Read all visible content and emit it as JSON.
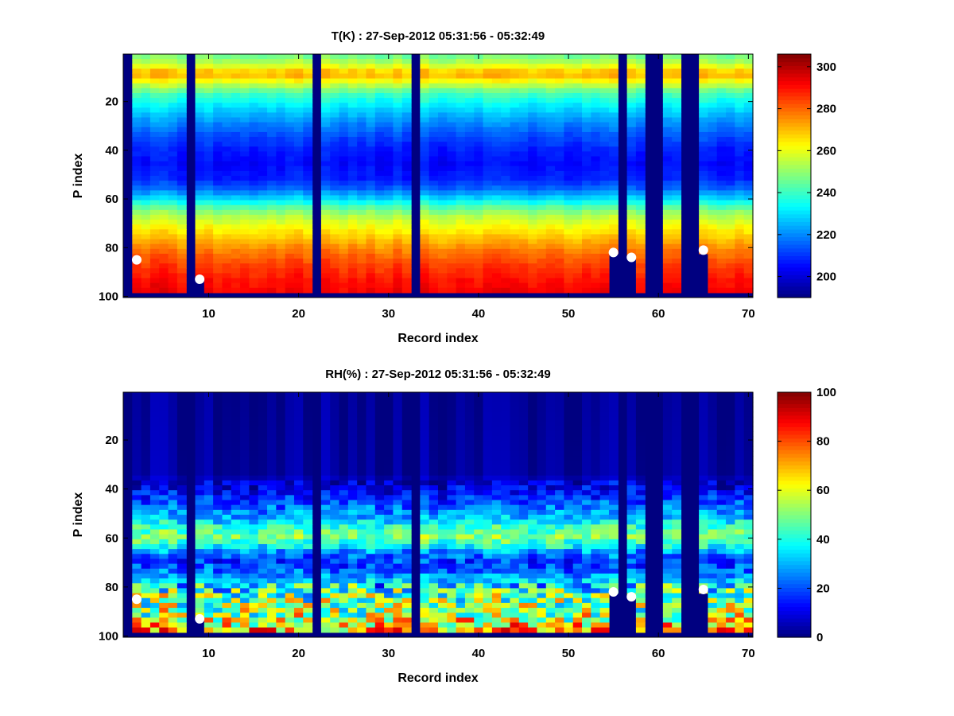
{
  "chart_data": [
    {
      "type": "heatmap",
      "title": "T(K) : 27-Sep-2012 05:31:56 - 05:32:49",
      "xlabel": "Record index",
      "ylabel": "P index",
      "xlim": [
        0.5,
        70.5
      ],
      "ylim": [
        0.5,
        100.5
      ],
      "y_reversed": true,
      "x_ticks": [
        10,
        20,
        30,
        40,
        50,
        60,
        70
      ],
      "y_ticks": [
        20,
        40,
        60,
        80,
        100
      ],
      "colormap": "jet",
      "colorbar": {
        "range": [
          190,
          306
        ],
        "ticks": [
          200,
          220,
          240,
          260,
          280,
          300
        ]
      },
      "missing_columns": [
        1,
        8,
        22,
        33,
        56,
        59,
        60,
        63,
        64
      ],
      "bottom_cut_columns": [
        {
          "x": 9,
          "p": 93
        },
        {
          "x": 55,
          "p": 83
        },
        {
          "x": 57,
          "p": 85
        },
        {
          "x": 65,
          "p": 82
        }
      ],
      "markers": [
        {
          "x": 2,
          "y": 85
        },
        {
          "x": 9,
          "y": 93
        },
        {
          "x": 55,
          "y": 82
        },
        {
          "x": 57,
          "y": 84
        },
        {
          "x": 65,
          "y": 81
        }
      ],
      "profile": [
        {
          "p": 1,
          "v": 245
        },
        {
          "p": 5,
          "v": 255
        },
        {
          "p": 8,
          "v": 268
        },
        {
          "p": 10,
          "v": 270
        },
        {
          "p": 13,
          "v": 258
        },
        {
          "p": 17,
          "v": 242
        },
        {
          "p": 22,
          "v": 232
        },
        {
          "p": 28,
          "v": 222
        },
        {
          "p": 34,
          "v": 214
        },
        {
          "p": 40,
          "v": 208
        },
        {
          "p": 46,
          "v": 205
        },
        {
          "p": 52,
          "v": 208
        },
        {
          "p": 56,
          "v": 215
        },
        {
          "p": 60,
          "v": 228
        },
        {
          "p": 63,
          "v": 240
        },
        {
          "p": 67,
          "v": 253
        },
        {
          "p": 72,
          "v": 262
        },
        {
          "p": 77,
          "v": 270
        },
        {
          "p": 82,
          "v": 278
        },
        {
          "p": 88,
          "v": 285
        },
        {
          "p": 94,
          "v": 290
        },
        {
          "p": 98,
          "v": 292
        },
        {
          "p": 100,
          "v": 292
        }
      ]
    },
    {
      "type": "heatmap",
      "title": "RH(%) : 27-Sep-2012 05:31:56 - 05:32:49",
      "xlabel": "Record index",
      "ylabel": "P index",
      "xlim": [
        0.5,
        70.5
      ],
      "ylim": [
        0.5,
        100.5
      ],
      "y_reversed": true,
      "x_ticks": [
        10,
        20,
        30,
        40,
        50,
        60,
        70
      ],
      "y_ticks": [
        20,
        40,
        60,
        80,
        100
      ],
      "colormap": "jet",
      "colorbar": {
        "range": [
          0,
          100
        ],
        "ticks": [
          0,
          20,
          40,
          60,
          80,
          100
        ]
      },
      "missing_columns": [
        1,
        8,
        22,
        33,
        56,
        59,
        60,
        63,
        64
      ],
      "bottom_cut_columns": [
        {
          "x": 9,
          "p": 93
        },
        {
          "x": 55,
          "p": 83
        },
        {
          "x": 57,
          "p": 85
        },
        {
          "x": 65,
          "p": 82
        }
      ],
      "markers": [
        {
          "x": 2,
          "y": 85
        },
        {
          "x": 9,
          "y": 93
        },
        {
          "x": 55,
          "y": 82
        },
        {
          "x": 57,
          "y": 84
        },
        {
          "x": 65,
          "y": 81
        }
      ],
      "profile": [
        {
          "p": 1,
          "v": 2
        },
        {
          "p": 34,
          "v": 3
        },
        {
          "p": 40,
          "v": 10
        },
        {
          "p": 46,
          "v": 20
        },
        {
          "p": 52,
          "v": 30
        },
        {
          "p": 56,
          "v": 42
        },
        {
          "p": 60,
          "v": 50
        },
        {
          "p": 63,
          "v": 42
        },
        {
          "p": 66,
          "v": 28
        },
        {
          "p": 70,
          "v": 18
        },
        {
          "p": 74,
          "v": 22
        },
        {
          "p": 79,
          "v": 35
        },
        {
          "p": 84,
          "v": 48
        },
        {
          "p": 88,
          "v": 52
        },
        {
          "p": 92,
          "v": 55
        },
        {
          "p": 96,
          "v": 65
        },
        {
          "p": 98,
          "v": 70
        },
        {
          "p": 100,
          "v": 70
        }
      ]
    }
  ]
}
